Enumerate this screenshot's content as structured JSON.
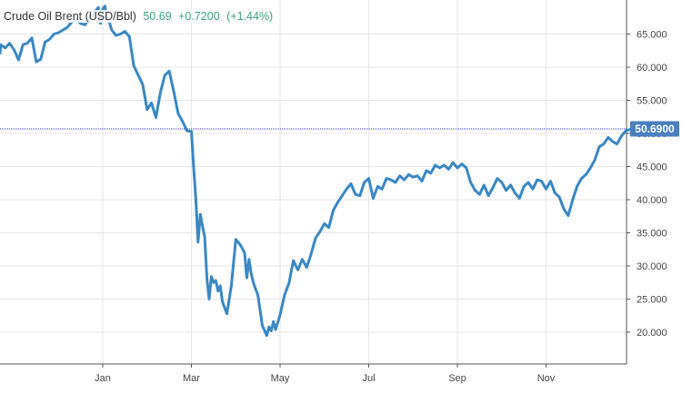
{
  "header": {
    "name": "Crude Oil Brent (USD/Bbl)",
    "price": "50.69",
    "change": "+0.7200",
    "change_pct": "(+1.44%)"
  },
  "colors": {
    "line": "#3a87c4",
    "grid": "#e6e6e6",
    "axis": "#555555",
    "positive": "#3aa17e",
    "price_tag_bg": "#4a7fc0",
    "reference_line": "#2b2bd6"
  },
  "chart_data": {
    "type": "line",
    "title": "",
    "xlabel": "",
    "ylabel": "",
    "ylim": [
      15,
      70
    ],
    "grid": true,
    "y_ticks": [
      "20.000",
      "25.000",
      "30.000",
      "35.000",
      "40.000",
      "45.000",
      "50.000",
      "55.000",
      "60.000",
      "65.000"
    ],
    "y_tick_values": [
      20,
      25,
      30,
      35,
      40,
      45,
      50,
      55,
      60,
      65
    ],
    "x_ticks": [
      "Jan",
      "Mar",
      "May",
      "Jul",
      "Sep",
      "Nov"
    ],
    "x_tick_values": [
      0.5,
      2.5,
      4.5,
      6.5,
      8.5,
      10.5
    ],
    "current_value_label": "50.6900",
    "current_value": 50.69,
    "series": [
      {
        "x": [
          -2.4,
          -2.3,
          -2.2,
          -2.1,
          -2.0,
          -1.9,
          -1.8,
          -1.7,
          -1.6,
          -1.5,
          -1.4,
          -1.3,
          -1.2,
          -1.1,
          -1.0,
          -0.9,
          -0.8,
          -0.7,
          -0.6,
          -0.5,
          -0.4,
          -0.3,
          -0.2,
          -0.1,
          0.0,
          0.1,
          0.2,
          0.3,
          0.35,
          0.4,
          0.45,
          0.5,
          0.55,
          0.6,
          0.65,
          0.7,
          0.8,
          0.9,
          1.0,
          1.1,
          1.2,
          1.3,
          1.4,
          1.5,
          1.6,
          1.7,
          1.8,
          1.9,
          2.0,
          2.1,
          2.2,
          2.3,
          2.4,
          2.5,
          2.55,
          2.6,
          2.65,
          2.7,
          2.75,
          2.8,
          2.85,
          2.9,
          2.95,
          3.0,
          3.05,
          3.1,
          3.15,
          3.2,
          3.3,
          3.4,
          3.5,
          3.6,
          3.7,
          3.75,
          3.8,
          3.85,
          3.9,
          4.0,
          4.1,
          4.2,
          4.25,
          4.3,
          4.35,
          4.4,
          4.5,
          4.6,
          4.7,
          4.8,
          4.9,
          5.0,
          5.1,
          5.2,
          5.3,
          5.4,
          5.5,
          5.6,
          5.7,
          5.8,
          5.9,
          6.0,
          6.1,
          6.2,
          6.3,
          6.4,
          6.5,
          6.6,
          6.7,
          6.8,
          6.9,
          7.0,
          7.1,
          7.2,
          7.3,
          7.4,
          7.5,
          7.6,
          7.7,
          7.8,
          7.9,
          8.0,
          8.1,
          8.2,
          8.3,
          8.4,
          8.5,
          8.6,
          8.7,
          8.8,
          8.9,
          9.0,
          9.1,
          9.2,
          9.3,
          9.4,
          9.5,
          9.6,
          9.7,
          9.8,
          9.9,
          10.0,
          10.1,
          10.2,
          10.3,
          10.4,
          10.5,
          10.6,
          10.7,
          10.8,
          10.9,
          11.0,
          11.1,
          11.2,
          11.3,
          11.4,
          11.5,
          11.6,
          11.7,
          11.8,
          11.9,
          12.0,
          12.1,
          12.2,
          12.3,
          12.4,
          12.5
        ],
        "values": [
          62.5,
          62.3,
          63.0,
          62.4,
          62.8,
          62.1,
          63.4,
          62.9,
          63.6,
          62.6,
          61.1,
          63.4,
          63.6,
          64.4,
          60.8,
          61.2,
          63.8,
          64.2,
          65.0,
          65.2,
          65.6,
          66.0,
          66.8,
          67.2,
          66.6,
          66.4,
          67.6,
          67.8,
          68.6,
          69.0,
          66.6,
          68.8,
          69.2,
          67.0,
          66.8,
          65.6,
          64.8,
          65.0,
          65.4,
          64.6,
          60.2,
          58.8,
          57.4,
          53.6,
          54.6,
          52.4,
          56.2,
          58.8,
          59.4,
          56.4,
          53.0,
          51.8,
          50.4,
          50.3,
          45.0,
          40.0,
          33.6,
          37.8,
          36.0,
          34.4,
          28.0,
          25.0,
          28.4,
          27.5,
          27.8,
          26.2,
          27.0,
          24.6,
          22.8,
          27.0,
          34.0,
          33.2,
          32.0,
          28.2,
          31.0,
          28.8,
          27.4,
          25.6,
          21.0,
          19.5,
          20.8,
          20.2,
          21.6,
          20.4,
          22.6,
          25.6,
          27.4,
          30.8,
          29.4,
          31.0,
          29.8,
          31.8,
          34.2,
          35.2,
          36.4,
          35.8,
          38.4,
          39.6,
          40.6,
          41.6,
          42.4,
          40.8,
          40.6,
          42.6,
          43.2,
          40.2,
          42.0,
          41.6,
          43.2,
          43.0,
          42.6,
          43.6,
          43.0,
          43.8,
          43.4,
          43.6,
          42.8,
          44.4,
          44.0,
          45.2,
          44.8,
          45.2,
          44.6,
          45.6,
          44.8,
          45.4,
          44.8,
          42.6,
          41.4,
          40.8,
          42.2,
          40.6,
          41.8,
          43.2,
          42.6,
          41.4,
          42.2,
          41.0,
          40.2,
          42.0,
          42.6,
          41.6,
          43.0,
          42.8,
          41.6,
          42.8,
          41.0,
          40.4,
          38.6,
          37.6,
          40.0,
          42.0,
          43.2,
          43.8,
          44.8,
          46.0,
          48.0,
          48.4,
          49.4,
          48.8,
          48.4,
          49.6,
          50.4,
          50.6,
          50.69
        ]
      }
    ]
  }
}
